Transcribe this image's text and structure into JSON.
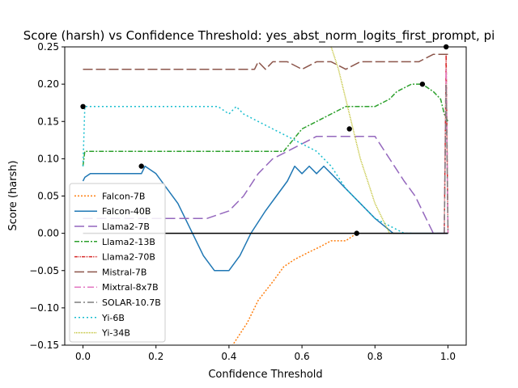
{
  "chart_data": {
    "type": "line",
    "title": "Score (harsh) vs Confidence Threshold: yes_abst_norm_logits_first_prompt, pi",
    "xlabel": "Confidence Threshold",
    "ylabel": "Score (harsh)",
    "xlim": [
      -0.05,
      1.05
    ],
    "ylim": [
      -0.15,
      0.25
    ],
    "xticks": [
      "0.0",
      "0.2",
      "0.4",
      "0.6",
      "0.8",
      "1.0"
    ],
    "xtick_values": [
      0.0,
      0.2,
      0.4,
      0.6,
      0.8,
      1.0
    ],
    "yticks": [
      "−0.15",
      "−0.10",
      "−0.05",
      "0.00",
      "0.05",
      "0.10",
      "0.15",
      "0.20",
      "0.25"
    ],
    "ytick_values": [
      -0.15,
      -0.1,
      -0.05,
      0.0,
      0.05,
      0.1,
      0.15,
      0.2,
      0.25
    ],
    "grid": false,
    "legend_position": "lower-left",
    "zero_line": {
      "y": 0.0,
      "x": [
        0.0,
        1.0
      ],
      "color": "#000000"
    },
    "series": [
      {
        "name": "Falcon-7B",
        "color": "#ff7f0e",
        "dash": "2,2",
        "x": [
          0.35,
          0.41,
          0.45,
          0.48,
          0.52,
          0.55,
          0.58,
          0.62,
          0.65,
          0.68,
          0.72,
          0.75
        ],
        "y": [
          -0.2,
          -0.15,
          -0.12,
          -0.09,
          -0.065,
          -0.045,
          -0.035,
          -0.025,
          -0.018,
          -0.01,
          -0.01,
          0.0
        ]
      },
      {
        "name": "Falcon-40B",
        "color": "#1f77b4",
        "dash": "",
        "x": [
          0.0,
          0.005,
          0.02,
          0.1,
          0.16,
          0.17,
          0.2,
          0.23,
          0.26,
          0.3,
          0.33,
          0.36,
          0.4,
          0.43,
          0.46,
          0.5,
          0.53,
          0.56,
          0.58,
          0.6,
          0.62,
          0.64,
          0.66,
          0.68,
          0.7,
          0.72,
          0.74,
          0.76,
          0.8,
          0.85,
          0.9,
          0.95,
          0.98,
          0.99,
          1.0
        ],
        "y": [
          0.07,
          0.075,
          0.08,
          0.08,
          0.08,
          0.09,
          0.08,
          0.06,
          0.04,
          0.0,
          -0.03,
          -0.05,
          -0.05,
          -0.03,
          0.0,
          0.03,
          0.05,
          0.07,
          0.09,
          0.08,
          0.09,
          0.08,
          0.09,
          0.08,
          0.07,
          0.06,
          0.05,
          0.04,
          0.02,
          0.0,
          0.0,
          0.0,
          0.0,
          0.0,
          0.0
        ]
      },
      {
        "name": "Llama2-7B",
        "color": "#9467bd",
        "dash": "12,5",
        "x": [
          0.0,
          0.3,
          0.34,
          0.4,
          0.44,
          0.48,
          0.52,
          0.56,
          0.6,
          0.64,
          0.68,
          0.72,
          0.8,
          0.84,
          0.88,
          0.91,
          0.94,
          0.96,
          1.0
        ],
        "y": [
          0.02,
          0.02,
          0.02,
          0.03,
          0.05,
          0.08,
          0.1,
          0.11,
          0.12,
          0.13,
          0.13,
          0.13,
          0.13,
          0.1,
          0.07,
          0.05,
          0.02,
          0.0,
          0.0
        ]
      },
      {
        "name": "Llama2-13B",
        "color": "#2ca02c",
        "dash": "6,2,2,2",
        "x": [
          0.0,
          0.005,
          0.55,
          0.6,
          0.64,
          0.68,
          0.72,
          0.76,
          0.8,
          0.84,
          0.86,
          0.9,
          0.93,
          0.96,
          0.98,
          0.99,
          1.0
        ],
        "y": [
          0.09,
          0.11,
          0.11,
          0.14,
          0.15,
          0.16,
          0.17,
          0.17,
          0.17,
          0.18,
          0.19,
          0.2,
          0.2,
          0.19,
          0.18,
          0.16,
          0.15
        ]
      },
      {
        "name": "Llama2-70B",
        "color": "#d62728",
        "dash": "4,1,1,1,1,1",
        "x": [
          0.99,
          0.995,
          1.0
        ],
        "y": [
          0.0,
          0.24,
          0.0
        ]
      },
      {
        "name": "Mistral-7B",
        "color": "#8c564b",
        "dash": "12,4",
        "x": [
          0.0,
          0.47,
          0.48,
          0.5,
          0.52,
          0.56,
          0.6,
          0.64,
          0.68,
          0.72,
          0.76,
          0.8,
          0.84,
          0.88,
          0.92,
          0.96,
          1.0
        ],
        "y": [
          0.22,
          0.22,
          0.23,
          0.22,
          0.23,
          0.23,
          0.22,
          0.23,
          0.23,
          0.22,
          0.23,
          0.23,
          0.23,
          0.23,
          0.23,
          0.24,
          0.24
        ]
      },
      {
        "name": "Mixtral-8x7B",
        "color": "#e377c2",
        "dash": "8,3,2,3",
        "x": [
          0.99,
          0.995,
          1.0
        ],
        "y": [
          0.0,
          0.22,
          0.0
        ]
      },
      {
        "name": "SOLAR-10.7B",
        "color": "#7f7f7f",
        "dash": "8,3,2,3",
        "x": [
          0.99,
          0.995,
          1.0
        ],
        "y": [
          0.0,
          0.2,
          0.0
        ]
      },
      {
        "name": "Yi-6B",
        "color": "#17becf",
        "dash": "2,3",
        "x": [
          0.0,
          0.005,
          0.37,
          0.4,
          0.42,
          0.44,
          0.48,
          0.52,
          0.56,
          0.6,
          0.64,
          0.68,
          0.72,
          0.76,
          0.8,
          0.84,
          0.88,
          0.9
        ],
        "y": [
          0.09,
          0.17,
          0.17,
          0.16,
          0.17,
          0.16,
          0.15,
          0.14,
          0.13,
          0.12,
          0.11,
          0.09,
          0.06,
          0.04,
          0.02,
          0.01,
          0.0,
          0.0
        ]
      },
      {
        "name": "Yi-34B",
        "color": "#bcbd22",
        "dash": "1,1",
        "x": [
          0.68,
          0.7,
          0.72,
          0.74,
          0.76,
          0.78,
          0.8,
          0.82,
          0.84,
          0.86
        ],
        "y": [
          0.25,
          0.22,
          0.18,
          0.14,
          0.1,
          0.07,
          0.04,
          0.02,
          0.0,
          0.0
        ]
      }
    ],
    "markers": [
      {
        "x": 0.0,
        "y": 0.17
      },
      {
        "x": 0.16,
        "y": 0.09
      },
      {
        "x": 0.73,
        "y": 0.14
      },
      {
        "x": 0.75,
        "y": 0.0
      },
      {
        "x": 0.93,
        "y": 0.2
      },
      {
        "x": 0.995,
        "y": 0.25
      }
    ]
  }
}
